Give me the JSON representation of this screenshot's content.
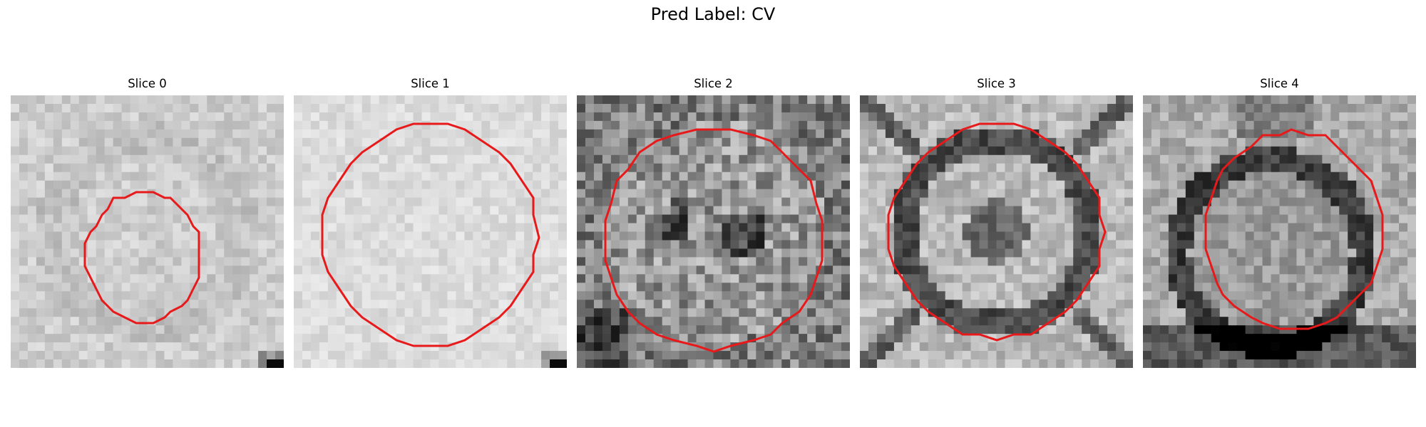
{
  "title": "Pred Label: CV",
  "panels": [
    {
      "label": "Slice 0",
      "style": "faint",
      "seed": 11
    },
    {
      "label": "Slice 1",
      "style": "bright",
      "seed": 23
    },
    {
      "label": "Slice 2",
      "style": "mottled",
      "seed": 37
    },
    {
      "label": "Slice 3",
      "style": "ring",
      "seed": 51
    },
    {
      "label": "Slice 4",
      "style": "ringdark",
      "seed": 67
    }
  ],
  "contour_color": "#e8191a"
}
